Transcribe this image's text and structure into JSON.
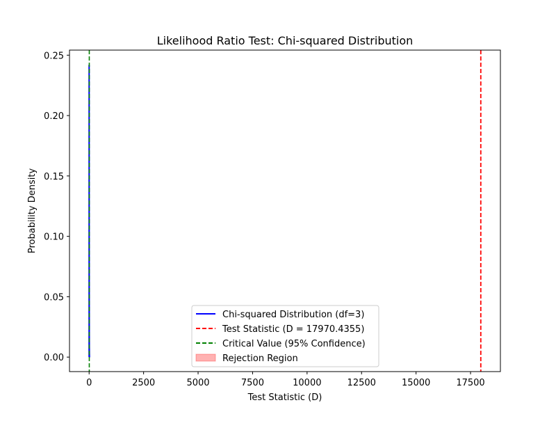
{
  "chart_data": {
    "type": "line",
    "title": "Likelihood Ratio Test: Chi-squared Distribution",
    "xlabel": "Test Statistic (D)",
    "ylabel": "Probability Density",
    "xlim": [
      -900,
      18870
    ],
    "ylim": [
      -0.012,
      0.2542
    ],
    "xticks": [
      0,
      2500,
      5000,
      7500,
      10000,
      12500,
      15000,
      17500
    ],
    "xtick_labels": [
      "0",
      "2500",
      "5000",
      "7500",
      "10000",
      "12500",
      "15000",
      "17500"
    ],
    "yticks": [
      0.0,
      0.05,
      0.1,
      0.15,
      0.2,
      0.25
    ],
    "ytick_labels": [
      "0.00",
      "0.05",
      "0.10",
      "0.15",
      "0.20",
      "0.25"
    ],
    "grid": false,
    "legend_position": "lower-center",
    "df": 3,
    "curve": {
      "name": "Chi-squared Distribution (df=3)",
      "color": "#0000ff",
      "x": [
        0,
        0.5,
        1,
        1.5,
        2,
        2.5,
        3,
        4,
        5,
        6,
        7,
        8,
        10,
        12,
        15,
        20,
        30,
        40
      ],
      "y": [
        0.0,
        0.2197,
        0.242,
        0.2308,
        0.2076,
        0.1809,
        0.1542,
        0.108,
        0.0732,
        0.0487,
        0.0319,
        0.0207,
        0.0085,
        0.0034,
        0.0008,
        0.0001,
        0.0,
        0.0
      ]
    },
    "test_statistic": {
      "name": "Test Statistic (D = 17970.4355)",
      "value": 17970.4355,
      "color": "#ff0000"
    },
    "critical_value": {
      "name": "Critical Value (95% Confidence)",
      "value": 7.8147,
      "color": "#008000"
    },
    "rejection_region": {
      "name": "Rejection Region",
      "color": "#ff0000",
      "alpha": 0.3
    },
    "legend": [
      {
        "label": "Chi-squared Distribution (df=3)",
        "kind": "line",
        "color": "#0000ff"
      },
      {
        "label": "Test Statistic (D = 17970.4355)",
        "kind": "dashed",
        "color": "#ff0000"
      },
      {
        "label": "Critical Value (95% Confidence)",
        "kind": "dashed",
        "color": "#008000"
      },
      {
        "label": "Rejection Region",
        "kind": "patch",
        "color": "#ff0000"
      }
    ]
  }
}
